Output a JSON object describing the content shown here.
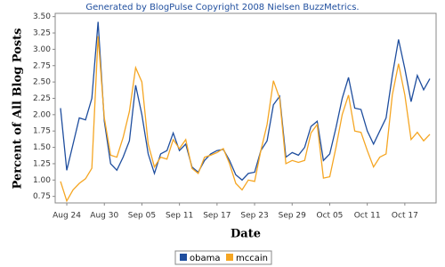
{
  "chart_data": {
    "type": "line",
    "title": "Generated by BlogPulse Copyright 2008 Nielsen BuzzMetrics.",
    "y_label": "Percent of All Blog Posts",
    "x_label": "Date",
    "categories": [
      null,
      "Aug 24",
      null,
      null,
      null,
      null,
      null,
      "Aug 30",
      null,
      null,
      null,
      null,
      null,
      "Sep 05",
      null,
      null,
      null,
      null,
      null,
      "Sep 11",
      null,
      null,
      null,
      null,
      null,
      "Sep 17",
      null,
      null,
      null,
      null,
      null,
      "Sep 23",
      null,
      null,
      null,
      null,
      null,
      "Sep 29",
      null,
      null,
      null,
      null,
      null,
      "Oct 05",
      null,
      null,
      null,
      null,
      null,
      "Oct 11",
      null,
      null,
      null,
      null,
      null,
      "Oct 17",
      null,
      null,
      null,
      null
    ],
    "series": [
      {
        "name": "obama",
        "color": "#1f4e9e",
        "values": [
          2.1,
          1.15,
          1.55,
          1.95,
          1.92,
          2.25,
          3.42,
          1.9,
          1.25,
          1.15,
          1.35,
          1.6,
          2.45,
          2.0,
          1.4,
          1.1,
          1.4,
          1.45,
          1.72,
          1.45,
          1.55,
          1.2,
          1.12,
          1.3,
          1.4,
          1.45,
          1.47,
          1.3,
          1.08,
          1.0,
          1.1,
          1.12,
          1.45,
          1.6,
          2.15,
          2.28,
          1.35,
          1.42,
          1.38,
          1.5,
          1.82,
          1.9,
          1.3,
          1.4,
          1.8,
          2.25,
          2.57,
          2.1,
          2.08,
          1.75,
          1.55,
          1.75,
          1.95,
          2.6,
          3.15,
          2.7,
          2.2,
          2.6,
          2.38,
          2.55
        ]
      },
      {
        "name": "mccain",
        "color": "#f5a623",
        "values": [
          0.98,
          0.68,
          0.85,
          0.95,
          1.02,
          1.18,
          3.2,
          1.95,
          1.38,
          1.35,
          1.65,
          2.05,
          2.72,
          2.5,
          1.55,
          1.2,
          1.35,
          1.32,
          1.62,
          1.48,
          1.62,
          1.18,
          1.1,
          1.35,
          1.38,
          1.42,
          1.48,
          1.25,
          0.95,
          0.85,
          1.0,
          0.98,
          1.45,
          1.85,
          2.52,
          2.25,
          1.25,
          1.3,
          1.27,
          1.3,
          1.72,
          1.85,
          1.03,
          1.05,
          1.5,
          2.0,
          2.3,
          1.75,
          1.73,
          1.45,
          1.2,
          1.35,
          1.4,
          2.3,
          2.78,
          2.3,
          1.62,
          1.73,
          1.6,
          1.7
        ]
      }
    ],
    "ylim": [
      0.65,
      3.55
    ],
    "yticks": [
      {
        "value": 0.75,
        "label": "0.75"
      },
      {
        "value": 1,
        "label": "1.00"
      },
      {
        "value": 1.25,
        "label": "1.25"
      },
      {
        "value": 1.5,
        "label": "1.50"
      },
      {
        "value": 1.75,
        "label": "1.75"
      },
      {
        "value": 2,
        "label": "2.00"
      },
      {
        "value": 2.25,
        "label": "2.25"
      },
      {
        "value": 2.5,
        "label": "2.50"
      },
      {
        "value": 2.75,
        "label": "2.75"
      },
      {
        "value": 3,
        "label": "3.00"
      },
      {
        "value": 3.25,
        "label": "3.25"
      },
      {
        "value": 3.5,
        "label": "3.50"
      }
    ],
    "grid": false
  }
}
